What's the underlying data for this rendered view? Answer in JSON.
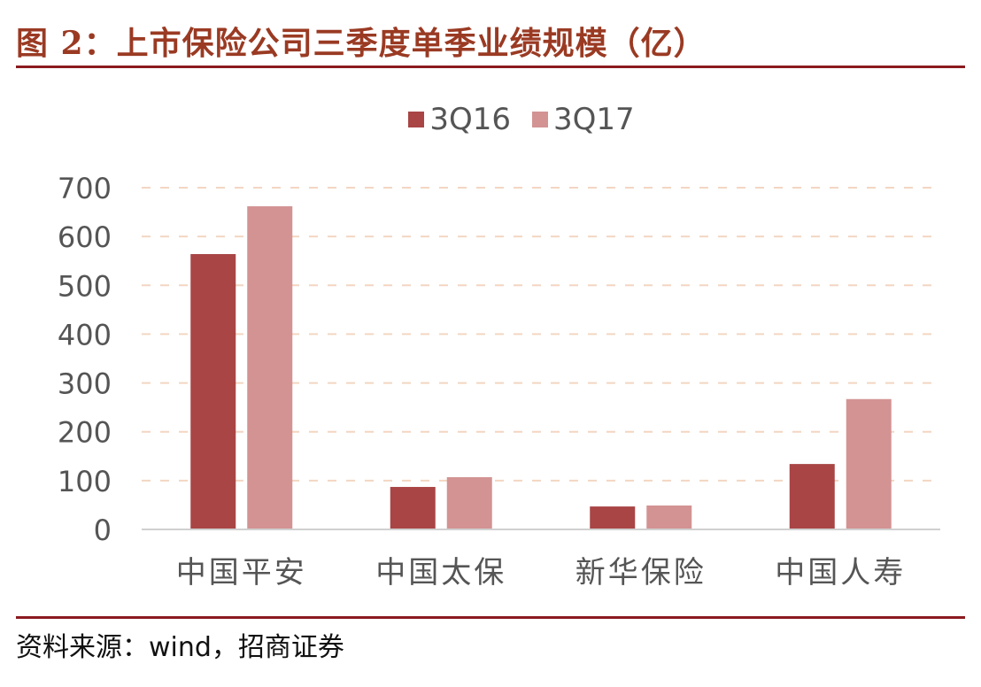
{
  "header": {
    "title": "图 2：上市保险公司三季度单季业绩规模（亿）"
  },
  "footer": {
    "source": "资料来源：wind，招商证券"
  },
  "colors": {
    "title": "#9a3a23",
    "rule": "#8b1a1f",
    "series_3Q16": "#a94545",
    "series_3Q17": "#d39393",
    "grid": "#f3d6c2",
    "axis_text": "#555555"
  },
  "legend": {
    "items": [
      {
        "label": "3Q16",
        "color": "#a94545"
      },
      {
        "label": "3Q17",
        "color": "#d39393"
      }
    ]
  },
  "chart_data": {
    "type": "bar",
    "title": "上市保险公司三季度单季业绩规模（亿）",
    "xlabel": "",
    "ylabel": "",
    "categories": [
      "中国平安",
      "中国太保",
      "新华保险",
      "中国人寿"
    ],
    "series": [
      {
        "name": "3Q16",
        "values": [
          564,
          87,
          47,
          134
        ]
      },
      {
        "name": "3Q17",
        "values": [
          662,
          107,
          49,
          267
        ]
      }
    ],
    "ylim": [
      0,
      700
    ],
    "yticks": [
      0,
      100,
      200,
      300,
      400,
      500,
      600,
      700
    ],
    "grid": true,
    "grid_style": "dashed",
    "legend_position": "top"
  }
}
